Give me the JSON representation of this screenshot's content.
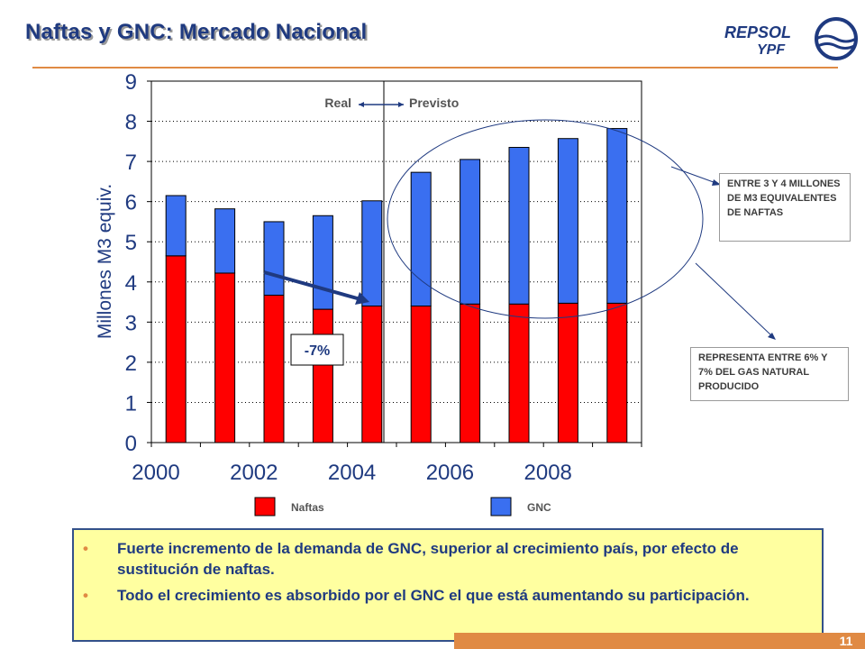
{
  "slide": {
    "title": "Naftas y GNC: Mercado Nacional",
    "page_number": "11",
    "logo_line1": "REPSOL",
    "logo_line2": "YPF"
  },
  "colors": {
    "title": "#1f3a80",
    "accent": "#e08a44",
    "naftas": "#ff0000",
    "gnc": "#3a6ff0",
    "panel": "#ffffa0"
  },
  "chart_data": {
    "type": "bar",
    "stacked": true,
    "ylabel": "Millones M3 equiv.",
    "ylim": [
      0,
      9
    ],
    "yticks": [
      "0",
      "1",
      "2",
      "3",
      "4",
      "5",
      "6",
      "7",
      "8",
      "9"
    ],
    "xticks": [
      "2000",
      "2002",
      "2004",
      "2006",
      "2008"
    ],
    "categories": [
      "2000",
      "2001",
      "2002",
      "2003",
      "2004",
      "2005",
      "2006",
      "2007",
      "2008",
      "2009"
    ],
    "series": [
      {
        "name": "Naftas",
        "values": [
          4.65,
          4.22,
          3.67,
          3.32,
          3.4,
          3.4,
          3.45,
          3.45,
          3.47,
          3.47
        ]
      },
      {
        "name": "GNC",
        "values": [
          1.5,
          1.6,
          1.83,
          2.33,
          2.62,
          3.33,
          3.6,
          3.9,
          4.1,
          4.35
        ]
      }
    ],
    "grid": "horizontal-dotted",
    "legend_position": "bottom",
    "annotations": {
      "real": "Real",
      "previsto": "Previsto",
      "trend": "-7%"
    }
  },
  "callouts": {
    "top": "ENTRE 3 Y 4 MILLONES DE M3 EQUIVALENTES DE NAFTAS",
    "bottom": "REPRESENTA ENTRE 6% Y 7% DEL GAS NATURAL PRODUCIDO"
  },
  "bullets": [
    "Fuerte incremento de la demanda de GNC, superior al crecimiento país, por efecto de sustitución de naftas.",
    "Todo el crecimiento es absorbido por el GNC el que está aumentando su participación."
  ],
  "bullet_marker": "•"
}
